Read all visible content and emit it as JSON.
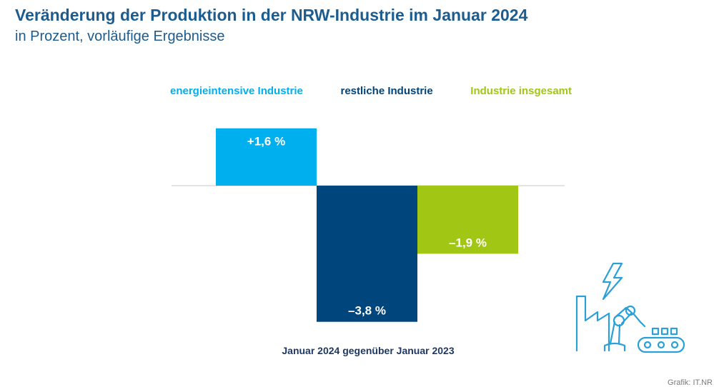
{
  "header": {
    "title": "Veränderung der Produktion in der NRW-Industrie im Januar 2024",
    "subtitle": "in Prozent, vorläufige Ergebnisse"
  },
  "source": "Grafik: IT.NR",
  "chart_data": {
    "type": "bar",
    "title": "Veränderung der Produktion in der NRW-Industrie im Januar 2024",
    "subtitle": "in Prozent, vorläufige Ergebnisse",
    "xlabel": "Januar 2024 gegenüber Januar 2023",
    "ylabel": "",
    "ylim": [
      -3.8,
      1.6
    ],
    "grid": false,
    "legend_position": "top",
    "categories": [
      "energieintensive Industrie",
      "restliche Industrie",
      "Industrie insgesamt"
    ],
    "series": [
      {
        "values": [
          1.6,
          -3.8,
          -1.9
        ],
        "labels": [
          "+1,6 %",
          "–3,8 %",
          "–1,9 %"
        ],
        "colors": [
          "#00b0ee",
          "#00457c",
          "#a2c614"
        ]
      }
    ]
  },
  "illustration": {
    "icon": "factory-robot-arm-lightning-icon",
    "color": "#2a9fd8"
  }
}
